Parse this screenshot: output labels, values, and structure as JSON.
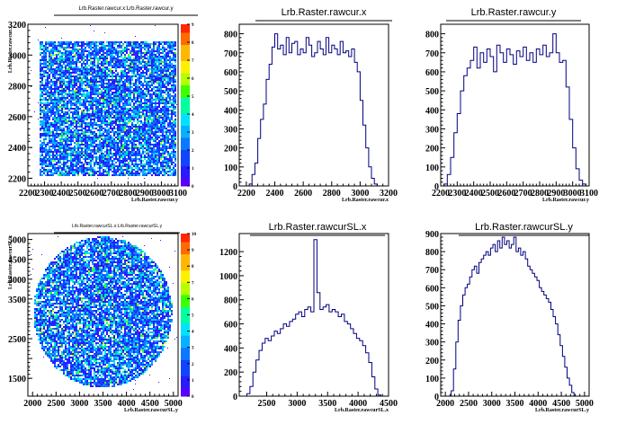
{
  "chart_data": [
    {
      "type": "heatmap",
      "title": "Lrb.Raster.rawcur.x:Lrb.Raster.rawcur.y",
      "xlabel": "Lrb.Raster.rawcur.y",
      "ylabel": "Lrb.Raster.rawcur.x",
      "xlim": [
        2200,
        3100
      ],
      "ylim": [
        2150,
        3200
      ],
      "x_ticks": [
        "2200",
        "2300",
        "2400",
        "2500",
        "2600",
        "2700",
        "2800",
        "2900",
        "3000",
        "3100"
      ],
      "y_ticks": [
        "2200",
        "2400",
        "2600",
        "2800",
        "3000",
        "3200"
      ],
      "y_ticks_shown": [
        "2200",
        "2400",
        "2600",
        "2800",
        "3000",
        "3200"
      ],
      "shape": "rectangle",
      "region": {
        "x": [
          2260,
          3080
        ],
        "y": [
          2220,
          3100
        ]
      },
      "z_range": [
        0,
        9
      ],
      "z_ticks": [
        "0",
        "1",
        "2",
        "3",
        "4",
        "5",
        "6",
        "7",
        "8",
        "9"
      ]
    },
    {
      "type": "histogram",
      "title": "Lrb.Raster.rawcur.x",
      "xlabel": "Lrb.Raster.rawcur.x",
      "ylabel": "",
      "xlim": [
        2150,
        3200
      ],
      "ylim": [
        0,
        850
      ],
      "x_ticks": [
        "2200",
        "2400",
        "2600",
        "2800",
        "3000",
        "3200"
      ],
      "y_ticks": [
        "0",
        "100",
        "200",
        "300",
        "400",
        "500",
        "600",
        "700",
        "800"
      ],
      "x": [
        2230,
        2250,
        2270,
        2290,
        2310,
        2330,
        2350,
        2370,
        2390,
        2410,
        2430,
        2450,
        2470,
        2490,
        2510,
        2530,
        2550,
        2570,
        2590,
        2610,
        2630,
        2650,
        2670,
        2690,
        2710,
        2730,
        2750,
        2770,
        2790,
        2810,
        2830,
        2850,
        2870,
        2890,
        2910,
        2930,
        2950,
        2970,
        2990,
        3010,
        3030,
        3050,
        3070,
        3090,
        3110,
        3130
      ],
      "values": [
        10,
        60,
        120,
        250,
        350,
        430,
        560,
        640,
        730,
        800,
        720,
        740,
        690,
        780,
        700,
        750,
        760,
        690,
        720,
        700,
        780,
        740,
        680,
        700,
        760,
        720,
        690,
        780,
        700,
        740,
        720,
        690,
        760,
        700,
        710,
        680,
        720,
        650,
        600,
        450,
        320,
        200,
        100,
        40,
        10,
        0
      ]
    },
    {
      "type": "histogram",
      "title": "Lrb.Raster.rawcur.y",
      "xlabel": "Lrb.Raster.rawcur.y",
      "ylabel": "",
      "xlim": [
        2200,
        3100
      ],
      "ylim": [
        0,
        850
      ],
      "x_ticks": [
        "2200",
        "2300",
        "2400",
        "2500",
        "2600",
        "2700",
        "2800",
        "2900",
        "3000",
        "3100"
      ],
      "y_ticks": [
        "0",
        "100",
        "200",
        "300",
        "400",
        "500",
        "600",
        "700",
        "800"
      ],
      "x": [
        2230,
        2250,
        2270,
        2290,
        2310,
        2330,
        2350,
        2370,
        2390,
        2410,
        2430,
        2450,
        2470,
        2490,
        2510,
        2530,
        2550,
        2570,
        2590,
        2610,
        2630,
        2650,
        2670,
        2690,
        2710,
        2730,
        2750,
        2770,
        2790,
        2810,
        2830,
        2850,
        2870,
        2890,
        2910,
        2930,
        2950,
        2970,
        2990,
        3010,
        3030,
        3050,
        3070,
        3090
      ],
      "values": [
        10,
        60,
        150,
        280,
        380,
        500,
        580,
        620,
        660,
        730,
        620,
        700,
        650,
        720,
        680,
        600,
        740,
        700,
        650,
        720,
        690,
        640,
        710,
        680,
        730,
        660,
        700,
        650,
        720,
        690,
        740,
        680,
        700,
        800,
        700,
        650,
        660,
        520,
        350,
        200,
        90,
        30,
        10,
        0
      ]
    },
    {
      "type": "heatmap",
      "title": "Lrb.Raster.rawcurSL.x:Lrb.Raster.rawcurSL.y",
      "xlabel": "Lrb.Raster.rawcurSL.y",
      "ylabel": "Lrb.Raster.rawcurSL.x",
      "xlim": [
        1900,
        5100
      ],
      "ylim": [
        1050,
        5150
      ],
      "x_ticks": [
        "2000",
        "2500",
        "3000",
        "3500",
        "4000",
        "4500",
        "5000"
      ],
      "y_ticks": [
        "1500",
        "2000",
        "2500",
        "3000",
        "3500",
        "4000",
        "4500",
        "5000"
      ],
      "y_ticks_shown": [
        "1500",
        "2500",
        "3500",
        "4000",
        "4500",
        "5000"
      ],
      "shape": "disk",
      "region": {
        "cx": 3480,
        "cy": 3190,
        "rx": 1480,
        "ry": 1900
      },
      "z_range": [
        0,
        10
      ],
      "z_ticks": [
        "0",
        "1",
        "2",
        "3",
        "4",
        "5",
        "6",
        "7",
        "8",
        "9",
        "10"
      ]
    },
    {
      "type": "histogram",
      "title": "Lrb.Raster.rawcurSL.x",
      "xlabel": "Lrb.Raster.rawcurSL.x",
      "ylabel": "",
      "xlim": [
        2050,
        4500
      ],
      "ylim": [
        0,
        1350
      ],
      "x_ticks": [
        "2500",
        "3000",
        "3500",
        "4000",
        "4500"
      ],
      "y_ticks": [
        "0",
        "200",
        "400",
        "600",
        "800",
        "1000",
        "1200"
      ],
      "x": [
        2200,
        2250,
        2300,
        2350,
        2400,
        2450,
        2500,
        2550,
        2600,
        2650,
        2700,
        2750,
        2800,
        2850,
        2900,
        2950,
        3000,
        3050,
        3100,
        3150,
        3200,
        3250,
        3300,
        3350,
        3400,
        3450,
        3500,
        3550,
        3600,
        3650,
        3700,
        3750,
        3800,
        3850,
        3900,
        3950,
        4000,
        4050,
        4100,
        4150,
        4200,
        4250,
        4300,
        4350
      ],
      "values": [
        20,
        80,
        200,
        300,
        380,
        440,
        480,
        460,
        500,
        540,
        520,
        560,
        600,
        580,
        620,
        640,
        680,
        700,
        660,
        720,
        740,
        700,
        1300,
        860,
        720,
        740,
        760,
        700,
        720,
        700,
        660,
        680,
        620,
        600,
        560,
        520,
        480,
        460,
        420,
        360,
        280,
        160,
        60,
        10
      ]
    },
    {
      "type": "histogram",
      "title": "Lrb.Raster.rawcurSL.y",
      "xlabel": "Lrb.Raster.rawcurSL.y",
      "ylabel": "",
      "xlim": [
        1900,
        5100
      ],
      "ylim": [
        0,
        900
      ],
      "x_ticks": [
        "2000",
        "2500",
        "3000",
        "3500",
        "4000",
        "4500",
        "5000"
      ],
      "y_ticks": [
        "0",
        "100",
        "200",
        "300",
        "400",
        "500",
        "600",
        "700",
        "800",
        "900"
      ],
      "x": [
        2150,
        2200,
        2250,
        2300,
        2350,
        2400,
        2450,
        2500,
        2550,
        2600,
        2650,
        2700,
        2750,
        2800,
        2850,
        2900,
        2950,
        3000,
        3050,
        3100,
        3150,
        3200,
        3250,
        3300,
        3350,
        3400,
        3450,
        3500,
        3550,
        3600,
        3650,
        3700,
        3750,
        3800,
        3850,
        3900,
        3950,
        4000,
        4050,
        4100,
        4150,
        4200,
        4250,
        4300,
        4350,
        4400,
        4450,
        4500,
        4550,
        4600,
        4650,
        4700,
        4750,
        4800
      ],
      "values": [
        30,
        150,
        300,
        420,
        500,
        560,
        600,
        620,
        660,
        700,
        720,
        680,
        740,
        760,
        780,
        800,
        780,
        820,
        840,
        800,
        860,
        820,
        880,
        840,
        860,
        820,
        840,
        880,
        800,
        820,
        780,
        800,
        760,
        720,
        700,
        680,
        660,
        640,
        600,
        580,
        560,
        540,
        520,
        480,
        440,
        400,
        340,
        280,
        220,
        160,
        100,
        60,
        20,
        0
      ]
    }
  ]
}
